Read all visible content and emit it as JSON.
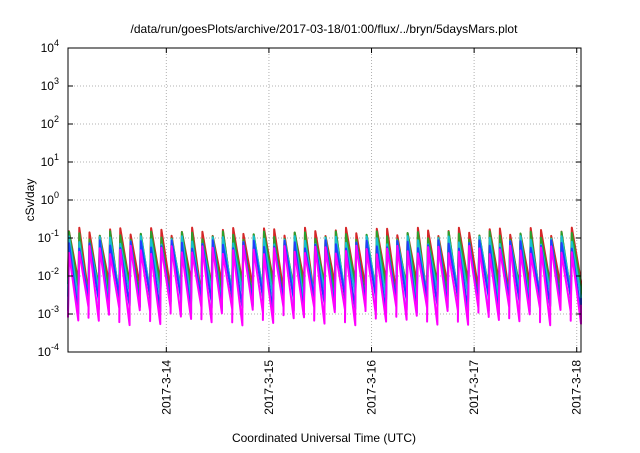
{
  "chart_data": {
    "type": "line",
    "title": "/data/run/goesPlots/archive/2017-03-18/01:00/flux/../bryn/5daysMars.plot",
    "xlabel": "Coordinated Universal Time (UTC)",
    "ylabel": "cSv/day",
    "yscale": "log",
    "ylim": [
      0.0001,
      10000
    ],
    "xlim": [
      "2017-03-13 01:00",
      "2017-03-18 01:00"
    ],
    "grid": true,
    "y_ticks": [
      {
        "value": 0.0001,
        "base": "10",
        "exp": "-4"
      },
      {
        "value": 0.001,
        "base": "10",
        "exp": "-3"
      },
      {
        "value": 0.01,
        "base": "10",
        "exp": "-2"
      },
      {
        "value": 0.1,
        "base": "10",
        "exp": "-1"
      },
      {
        "value": 1,
        "base": "10",
        "exp": "0"
      },
      {
        "value": 10,
        "base": "10",
        "exp": "1"
      },
      {
        "value": 100,
        "base": "10",
        "exp": "2"
      },
      {
        "value": 1000,
        "base": "10",
        "exp": "3"
      },
      {
        "value": 10000,
        "base": "10",
        "exp": "4"
      }
    ],
    "x_ticks": [
      {
        "value": "2017-03-14 00:00",
        "label": "2017-3-14"
      },
      {
        "value": "2017-03-15 00:00",
        "label": "2017-3-15"
      },
      {
        "value": "2017-03-16 00:00",
        "label": "2017-3-16"
      },
      {
        "value": "2017-03-17 00:00",
        "label": "2017-3-17"
      },
      {
        "value": "2017-03-18 00:00",
        "label": "2017-3-18"
      }
    ],
    "pattern": {
      "period_hours": 2.4,
      "series_peak_csv_per_day": [
        0.15,
        0.12,
        0.09,
        0.07,
        0.05
      ],
      "series_min_csv_per_day": [
        0.005,
        0.004,
        0.003,
        0.002,
        0.001
      ]
    },
    "series": [
      {
        "color": "#d62728"
      },
      {
        "color": "#2ca02c"
      },
      {
        "color": "#17becf"
      },
      {
        "color": "#1f3fff"
      },
      {
        "color": "#ff00ff"
      }
    ]
  }
}
